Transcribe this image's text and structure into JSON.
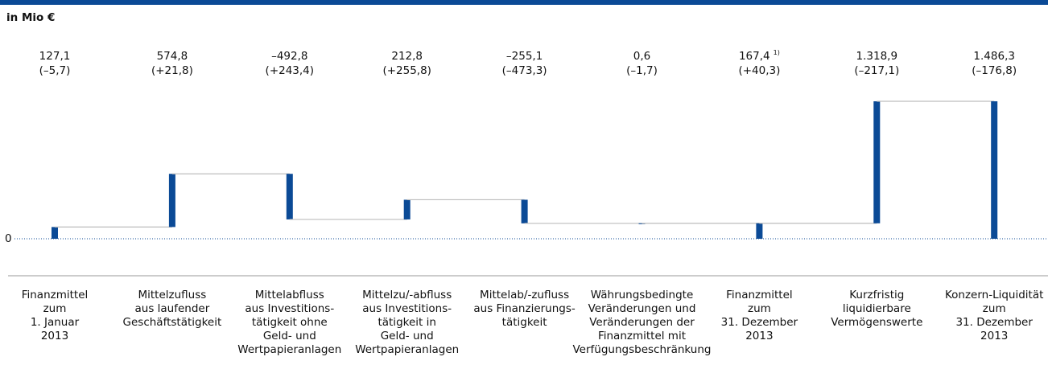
{
  "chart_data": {
    "type": "waterfall",
    "title": "in Mio €",
    "categories": [
      [
        "Finanzmittel",
        "zum",
        "1. Januar",
        "2013"
      ],
      [
        "Mittelzufluss",
        "aus laufender",
        "Geschäftstätigkeit"
      ],
      [
        "Mittelabfluss",
        "aus Investitions-",
        "tätigkeit ohne",
        "Geld- und",
        "Wertpapieranlagen"
      ],
      [
        "Mittelzu/-abfluss",
        "aus Investitions-",
        "tätigkeit in",
        "Geld- und",
        "Wertpapieranlagen"
      ],
      [
        "Mittelab/-zufluss",
        "aus Finanzierungs-",
        "tätigkeit"
      ],
      [
        "Währungsbedingte",
        "Veränderungen und",
        "Veränderungen der",
        "Finanzmittel mit",
        "Verfügungsbeschränkung"
      ],
      [
        "Finanzmittel",
        "zum",
        "31. Dezember",
        "2013"
      ],
      [
        "Kurzfristig",
        "liquidierbare",
        "Vermögenswerte"
      ],
      [
        "Konzern-Liquidität",
        "zum",
        "31. Dezember",
        "2013"
      ]
    ],
    "values": [
      127.1,
      574.8,
      -492.8,
      212.8,
      -255.1,
      0.6,
      167.4,
      1318.9,
      1486.3
    ],
    "value_labels": [
      "127,1",
      "574,8",
      "–492,8",
      "212,8",
      "–255,1",
      "0,6",
      "167,4",
      "1.318,9",
      "1.486,3"
    ],
    "value_label_notes": [
      null,
      null,
      null,
      null,
      null,
      null,
      "1)",
      null,
      null
    ],
    "change_labels": [
      "(–5,7)",
      "(+21,8)",
      "(+243,4)",
      "(+255,8)",
      "(–473,3)",
      "(–1,7)",
      "(+40,3)",
      "(–217,1)",
      "(–176,8)"
    ],
    "measures": [
      "absolute",
      "relative",
      "relative",
      "relative",
      "relative",
      "relative",
      "total",
      "relative",
      "total"
    ],
    "color": "#0b4a96",
    "connector_color": "#bdbdbd",
    "ylim": [
      0,
      1500
    ],
    "yticks": [
      0
    ]
  }
}
